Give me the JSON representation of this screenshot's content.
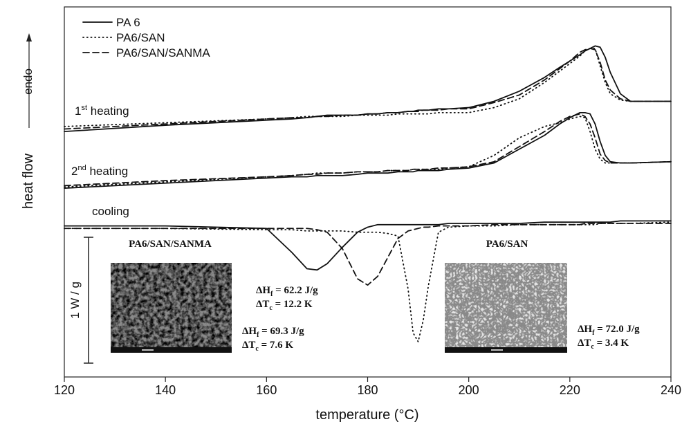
{
  "chart_data": {
    "type": "line",
    "xlabel": "temperature (°C)",
    "ylabel": "heat flow",
    "direction_label": "endo",
    "x": [
      120,
      140,
      160,
      165,
      168,
      170,
      172,
      175,
      178,
      180,
      182,
      184,
      186,
      188,
      189,
      190,
      191,
      192,
      194,
      196,
      200,
      205,
      210,
      215,
      218,
      220,
      222,
      223,
      224,
      225,
      226,
      227,
      228,
      230,
      232,
      240
    ],
    "xlim": [
      120,
      240
    ],
    "xticks": [
      120,
      140,
      160,
      180,
      200,
      220,
      240
    ],
    "ylim": [
      0,
      2.94
    ],
    "scan_labels": [
      {
        "text": "1",
        "sup": "st",
        "rest": " heating"
      },
      {
        "text": "2",
        "sup": "nd",
        "rest": " heating"
      },
      {
        "text": "cooling"
      }
    ],
    "series": [
      {
        "name": "PA 6",
        "color": "#111111",
        "dash": "solid",
        "scans": [
          {
            "values": [
              1.95,
              2.0,
              2.04,
              2.05,
              2.06,
              2.07,
              2.08,
              2.08,
              2.08,
              2.09,
              2.09,
              2.1,
              2.1,
              2.11,
              2.11,
              2.12,
              2.12,
              2.12,
              2.13,
              2.13,
              2.14,
              2.19,
              2.27,
              2.38,
              2.46,
              2.51,
              2.56,
              2.59,
              2.61,
              2.63,
              2.62,
              2.54,
              2.42,
              2.25,
              2.19,
              2.19
            ]
          },
          {
            "values": [
              1.5,
              1.54,
              1.58,
              1.59,
              1.59,
              1.6,
              1.6,
              1.6,
              1.61,
              1.62,
              1.62,
              1.62,
              1.63,
              1.63,
              1.63,
              1.64,
              1.64,
              1.64,
              1.64,
              1.65,
              1.66,
              1.7,
              1.81,
              1.92,
              2.01,
              2.06,
              2.1,
              2.1,
              2.09,
              2.01,
              1.87,
              1.76,
              1.71,
              1.7,
              1.7,
              1.71
            ]
          },
          {
            "values": [
              1.2,
              1.2,
              1.18,
              0.99,
              0.86,
              0.85,
              0.9,
              1.03,
              1.15,
              1.19,
              1.21,
              1.21,
              1.21,
              1.21,
              1.21,
              1.21,
              1.21,
              1.21,
              1.21,
              1.22,
              1.22,
              1.22,
              1.22,
              1.23,
              1.23,
              1.23,
              1.23,
              1.23,
              1.23,
              1.23,
              1.23,
              1.23,
              1.23,
              1.24,
              1.24,
              1.24
            ]
          }
        ]
      },
      {
        "name": "PA6/SAN",
        "color": "#111111",
        "dash": "dotted",
        "scans": [
          {
            "values": [
              1.99,
              2.02,
              2.05,
              2.06,
              2.07,
              2.07,
              2.07,
              2.07,
              2.08,
              2.08,
              2.08,
              2.08,
              2.09,
              2.09,
              2.09,
              2.09,
              2.09,
              2.09,
              2.1,
              2.1,
              2.1,
              2.14,
              2.21,
              2.34,
              2.43,
              2.49,
              2.55,
              2.59,
              2.61,
              2.61,
              2.47,
              2.34,
              2.25,
              2.2,
              2.19,
              2.19
            ]
          },
          {
            "values": [
              1.51,
              1.55,
              1.59,
              1.6,
              1.61,
              1.62,
              1.62,
              1.62,
              1.63,
              1.63,
              1.63,
              1.64,
              1.64,
              1.64,
              1.65,
              1.65,
              1.65,
              1.65,
              1.65,
              1.66,
              1.67,
              1.76,
              1.9,
              1.99,
              2.02,
              2.05,
              2.07,
              2.06,
              1.95,
              1.81,
              1.73,
              1.7,
              1.7,
              1.7,
              1.7,
              1.71
            ]
          },
          {
            "values": [
              1.18,
              1.18,
              1.17,
              1.17,
              1.16,
              1.16,
              1.16,
              1.16,
              1.15,
              1.15,
              1.15,
              1.14,
              1.12,
              0.7,
              0.35,
              0.28,
              0.45,
              0.72,
              1.15,
              1.19,
              1.2,
              1.2,
              1.21,
              1.21,
              1.21,
              1.21,
              1.21,
              1.21,
              1.21,
              1.21,
              1.22,
              1.22,
              1.22,
              1.22,
              1.22,
              1.23
            ]
          }
        ]
      },
      {
        "name": "PA6/SAN/SANMA",
        "color": "#111111",
        "dash": "dashed",
        "scans": [
          {
            "values": [
              1.97,
              2.01,
              2.05,
              2.06,
              2.06,
              2.07,
              2.07,
              2.08,
              2.08,
              2.09,
              2.09,
              2.1,
              2.1,
              2.11,
              2.11,
              2.11,
              2.12,
              2.12,
              2.12,
              2.13,
              2.13,
              2.18,
              2.24,
              2.36,
              2.45,
              2.51,
              2.58,
              2.6,
              2.61,
              2.6,
              2.5,
              2.36,
              2.28,
              2.21,
              2.19,
              2.19
            ]
          },
          {
            "values": [
              1.52,
              1.56,
              1.59,
              1.6,
              1.61,
              1.61,
              1.62,
              1.62,
              1.63,
              1.63,
              1.63,
              1.64,
              1.64,
              1.64,
              1.65,
              1.65,
              1.65,
              1.65,
              1.66,
              1.66,
              1.67,
              1.71,
              1.83,
              1.95,
              2.03,
              2.07,
              2.09,
              2.07,
              2.01,
              1.9,
              1.77,
              1.72,
              1.7,
              1.7,
              1.7,
              1.71
            ]
          },
          {
            "values": [
              1.18,
              1.18,
              1.18,
              1.18,
              1.18,
              1.17,
              1.15,
              1.02,
              0.78,
              0.73,
              0.8,
              0.95,
              1.1,
              1.16,
              1.17,
              1.18,
              1.19,
              1.19,
              1.2,
              1.2,
              1.2,
              1.21,
              1.21,
              1.21,
              1.21,
              1.21,
              1.21,
              1.22,
              1.22,
              1.22,
              1.22,
              1.22,
              1.22,
              1.22,
              1.22,
              1.22
            ]
          }
        ]
      }
    ],
    "scale_bar": {
      "label": "1 W / g",
      "value": 1
    },
    "insets": [
      {
        "title": "PA6/SAN/SANMA"
      },
      {
        "title": "PA6/SAN"
      }
    ],
    "annotations": [
      [
        {
          "sym": "ΔH",
          "sub": "f",
          "text": " = 62.2 J/g"
        },
        {
          "sym": "ΔT",
          "sub": "c",
          "text": " = 12.2 K"
        }
      ],
      [
        {
          "sym": "ΔH",
          "sub": "f",
          "text": " = 69.3 J/g"
        },
        {
          "sym": "ΔT",
          "sub": "c",
          "text": " = 7.6 K"
        }
      ],
      [
        {
          "sym": "ΔH",
          "sub": "f",
          "text": " = 72.0 J/g"
        },
        {
          "sym": "ΔT",
          "sub": "c",
          "text": " = 3.4 K"
        }
      ]
    ]
  }
}
